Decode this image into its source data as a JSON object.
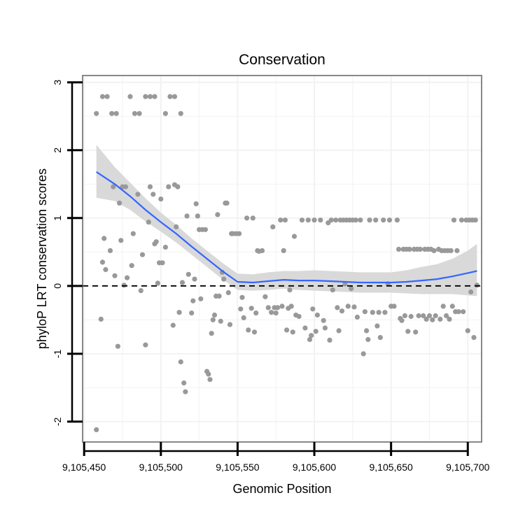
{
  "chart_data": {
    "type": "scatter",
    "title": "Conservation",
    "xlabel": "Genomic Position",
    "ylabel": "phyloP LRT conservation scores",
    "xlim": [
      9105449,
      9105709
    ],
    "ylim": [
      -2.3,
      3.1
    ],
    "x_ticks": [
      {
        "value": 9105450,
        "label": "9,105,450"
      },
      {
        "value": 9105500,
        "label": "9,105,500"
      },
      {
        "value": 9105550,
        "label": "9,105,550"
      },
      {
        "value": 9105600,
        "label": "9,105,600"
      },
      {
        "value": 9105650,
        "label": "9,105,650"
      },
      {
        "value": 9105700,
        "label": "9,105,700"
      }
    ],
    "y_ticks": [
      {
        "value": -2,
        "label": "-2"
      },
      {
        "value": -1,
        "label": "-1"
      },
      {
        "value": 0,
        "label": "0"
      },
      {
        "value": 1,
        "label": "1"
      },
      {
        "value": 2,
        "label": "2"
      },
      {
        "value": 3,
        "label": "3"
      }
    ],
    "reference_line": {
      "y": 0,
      "style": "dashed",
      "color": "#000000"
    },
    "grid": true,
    "colors": {
      "points": "#999999",
      "smooth": "#3366ff",
      "ribbon": "#d9d9d9",
      "grid": "#f2f2f2",
      "border": "#888888"
    },
    "series": [
      {
        "name": "scores",
        "points": [
          [
            9105458,
            2.54
          ],
          [
            9105462,
            2.79
          ],
          [
            9105465,
            2.79
          ],
          [
            9105468,
            2.54
          ],
          [
            9105471,
            2.54
          ],
          [
            9105480,
            2.79
          ],
          [
            9105483,
            2.54
          ],
          [
            9105486,
            2.54
          ],
          [
            9105490,
            2.79
          ],
          [
            9105493,
            2.79
          ],
          [
            9105496,
            2.79
          ],
          [
            9105503,
            2.54
          ],
          [
            9105506,
            2.79
          ],
          [
            9105509,
            2.79
          ],
          [
            9105513,
            2.54
          ],
          [
            9105458,
            -2.12
          ],
          [
            9105461,
            -0.49
          ],
          [
            9105462,
            0.35
          ],
          [
            9105463,
            0.7
          ],
          [
            9105464,
            0.24
          ],
          [
            9105467,
            0.52
          ],
          [
            9105469,
            1.46
          ],
          [
            9105470,
            0.15
          ],
          [
            9105472,
            -0.89
          ],
          [
            9105473,
            1.22
          ],
          [
            9105474,
            0.67
          ],
          [
            9105475,
            1.46
          ],
          [
            9105476,
            0.01
          ],
          [
            9105477,
            1.46
          ],
          [
            9105478,
            0.12
          ],
          [
            9105481,
            0.3
          ],
          [
            9105482,
            0.77
          ],
          [
            9105485,
            1.35
          ],
          [
            9105487,
            -0.07
          ],
          [
            9105488,
            0.46
          ],
          [
            9105490,
            -0.87
          ],
          [
            9105492,
            0.94
          ],
          [
            9105493,
            1.46
          ],
          [
            9105495,
            1.35
          ],
          [
            9105496,
            0.62
          ],
          [
            9105497,
            0.65
          ],
          [
            9105498,
            0.04
          ],
          [
            9105499,
            0.34
          ],
          [
            9105500,
            1.28
          ],
          [
            9105501,
            0.34
          ],
          [
            9105503,
            0.57
          ],
          [
            9105505,
            1.46
          ],
          [
            9105508,
            -0.58
          ],
          [
            9105509,
            1.49
          ],
          [
            9105510,
            0.87
          ],
          [
            9105511,
            1.46
          ],
          [
            9105512,
            -0.39
          ],
          [
            9105513,
            -1.12
          ],
          [
            9105514,
            0.05
          ],
          [
            9105515,
            -1.43
          ],
          [
            9105516,
            -1.56
          ],
          [
            9105517,
            1.03
          ],
          [
            9105518,
            0.17
          ],
          [
            9105520,
            -0.4
          ],
          [
            9105521,
            -0.22
          ],
          [
            9105522,
            0.1
          ],
          [
            9105523,
            1.21
          ],
          [
            9105524,
            1.03
          ],
          [
            9105525,
            0.83
          ],
          [
            9105526,
            -0.19
          ],
          [
            9105527,
            0.83
          ],
          [
            9105529,
            0.83
          ],
          [
            9105530,
            -1.26
          ],
          [
            9105531,
            -1.3
          ],
          [
            9105532,
            -1.38
          ],
          [
            9105533,
            -0.7
          ],
          [
            9105534,
            -0.5
          ],
          [
            9105535,
            -0.43
          ],
          [
            9105536,
            -0.15
          ],
          [
            9105537,
            1.05
          ],
          [
            9105538,
            -0.15
          ],
          [
            9105539,
            -0.52
          ],
          [
            9105540,
            0.2
          ],
          [
            9105541,
            0.1
          ],
          [
            9105542,
            1.22
          ],
          [
            9105543,
            1.22
          ],
          [
            9105544,
            -0.1
          ],
          [
            9105545,
            -0.57
          ],
          [
            9105546,
            0.77
          ],
          [
            9105547,
            0.77
          ],
          [
            9105549,
            0.77
          ],
          [
            9105551,
            0.77
          ],
          [
            9105552,
            -0.34
          ],
          [
            9105553,
            -0.17
          ],
          [
            9105554,
            -0.47
          ],
          [
            9105556,
            1.0
          ],
          [
            9105557,
            -0.65
          ],
          [
            9105559,
            -0.33
          ],
          [
            9105560,
            1.0
          ],
          [
            9105561,
            -0.68
          ],
          [
            9105562,
            -0.4
          ],
          [
            9105563,
            0.52
          ],
          [
            9105564,
            0.51
          ],
          [
            9105566,
            0.52
          ],
          [
            9105568,
            -0.16
          ],
          [
            9105570,
            -0.32
          ],
          [
            9105572,
            -0.39
          ],
          [
            9105573,
            0.87
          ],
          [
            9105574,
            -0.32
          ],
          [
            9105575,
            -0.4
          ],
          [
            9105576,
            -0.32
          ],
          [
            9105578,
            0.97
          ],
          [
            9105579,
            -0.3
          ],
          [
            9105580,
            0.52
          ],
          [
            9105581,
            0.97
          ],
          [
            9105582,
            -0.65
          ],
          [
            9105583,
            -0.33
          ],
          [
            9105584,
            -0.06
          ],
          [
            9105585,
            -0.3
          ],
          [
            9105586,
            -0.68
          ],
          [
            9105587,
            0.73
          ],
          [
            9105588,
            -0.43
          ],
          [
            9105590,
            -0.45
          ],
          [
            9105592,
            0.97
          ],
          [
            9105594,
            -0.62
          ],
          [
            9105596,
            0.97
          ],
          [
            9105597,
            -0.79
          ],
          [
            9105598,
            -0.73
          ],
          [
            9105599,
            -0.34
          ],
          [
            9105600,
            0.97
          ],
          [
            9105601,
            -0.67
          ],
          [
            9105602,
            -0.43
          ],
          [
            9105604,
            0.97
          ],
          [
            9105606,
            -0.51
          ],
          [
            9105607,
            -0.62
          ],
          [
            9105609,
            0.93
          ],
          [
            9105610,
            -0.8
          ],
          [
            9105611,
            0.97
          ],
          [
            9105612,
            -0.06
          ],
          [
            9105614,
            0.97
          ],
          [
            9105615,
            -0.32
          ],
          [
            9105616,
            -0.66
          ],
          [
            9105617,
            0.97
          ],
          [
            9105618,
            -0.37
          ],
          [
            9105619,
            0.97
          ],
          [
            9105620,
            0.03
          ],
          [
            9105621,
            0.97
          ],
          [
            9105622,
            -0.3
          ],
          [
            9105623,
            0.97
          ],
          [
            9105624,
            -0.04
          ],
          [
            9105625,
            0.97
          ],
          [
            9105626,
            -0.31
          ],
          [
            9105627,
            0.97
          ],
          [
            9105628,
            -0.46
          ],
          [
            9105630,
            0.97
          ],
          [
            9105632,
            -1.0
          ],
          [
            9105633,
            -0.38
          ],
          [
            9105634,
            -0.66
          ],
          [
            9105635,
            -0.79
          ],
          [
            9105636,
            0.97
          ],
          [
            9105638,
            -0.39
          ],
          [
            9105640,
            0.97
          ],
          [
            9105641,
            -0.59
          ],
          [
            9105642,
            -0.39
          ],
          [
            9105643,
            -0.76
          ],
          [
            9105645,
            0.97
          ],
          [
            9105646,
            -0.39
          ],
          [
            9105648,
            0.03
          ],
          [
            9105649,
            0.97
          ],
          [
            9105650,
            -0.3
          ],
          [
            9105652,
            -0.3
          ],
          [
            9105654,
            0.97
          ],
          [
            9105655,
            0.54
          ],
          [
            9105656,
            -0.48
          ],
          [
            9105657,
            -0.51
          ],
          [
            9105658,
            0.54
          ],
          [
            9105659,
            -0.44
          ],
          [
            9105660,
            0.54
          ],
          [
            9105661,
            -0.67
          ],
          [
            9105662,
            0.54
          ],
          [
            9105663,
            -0.45
          ],
          [
            9105665,
            0.54
          ],
          [
            9105666,
            -0.68
          ],
          [
            9105667,
            0.54
          ],
          [
            9105668,
            -0.44
          ],
          [
            9105669,
            0.54
          ],
          [
            9105671,
            -0.44
          ],
          [
            9105672,
            0.54
          ],
          [
            9105673,
            -0.49
          ],
          [
            9105674,
            0.54
          ],
          [
            9105675,
            -0.44
          ],
          [
            9105676,
            0.54
          ],
          [
            9105677,
            -0.5
          ],
          [
            9105678,
            0.52
          ],
          [
            9105679,
            -0.44
          ],
          [
            9105681,
            0.54
          ],
          [
            9105682,
            -0.49
          ],
          [
            9105683,
            0.52
          ],
          [
            9105684,
            -0.3
          ],
          [
            9105685,
            0.52
          ],
          [
            9105686,
            -0.44
          ],
          [
            9105687,
            0.52
          ],
          [
            9105688,
            -0.49
          ],
          [
            9105689,
            0.52
          ],
          [
            9105690,
            -0.3
          ],
          [
            9105691,
            0.97
          ],
          [
            9105692,
            -0.38
          ],
          [
            9105693,
            0.52
          ],
          [
            9105694,
            -0.38
          ],
          [
            9105696,
            0.97
          ],
          [
            9105697,
            -0.38
          ],
          [
            9105699,
            0.97
          ],
          [
            9105700,
            -0.66
          ],
          [
            9105701,
            0.97
          ],
          [
            9105702,
            -0.09
          ],
          [
            9105703,
            0.97
          ],
          [
            9105704,
            -0.76
          ],
          [
            9105705,
            0.97
          ],
          [
            9105706,
            0.01
          ]
        ]
      }
    ],
    "smooth": {
      "method": "loess",
      "x": [
        9105458,
        9105470,
        9105480,
        9105490,
        9105500,
        9105510,
        9105520,
        9105530,
        9105540,
        9105550,
        9105560,
        9105570,
        9105580,
        9105590,
        9105600,
        9105610,
        9105620,
        9105630,
        9105640,
        9105650,
        9105660,
        9105670,
        9105680,
        9105690,
        9105700,
        9105706
      ],
      "y": [
        1.68,
        1.5,
        1.32,
        1.12,
        0.94,
        0.77,
        0.58,
        0.4,
        0.22,
        0.06,
        0.05,
        0.07,
        0.09,
        0.08,
        0.08,
        0.07,
        0.06,
        0.05,
        0.05,
        0.05,
        0.06,
        0.08,
        0.1,
        0.14,
        0.19,
        0.22
      ],
      "lower": [
        1.3,
        1.25,
        1.12,
        0.95,
        0.8,
        0.64,
        0.46,
        0.28,
        0.1,
        -0.06,
        -0.07,
        -0.06,
        -0.04,
        -0.06,
        -0.07,
        -0.08,
        -0.09,
        -0.1,
        -0.1,
        -0.1,
        -0.11,
        -0.12,
        -0.12,
        -0.12,
        -0.14,
        -0.15
      ],
      "upper": [
        2.08,
        1.75,
        1.52,
        1.29,
        1.08,
        0.9,
        0.7,
        0.52,
        0.34,
        0.18,
        0.17,
        0.2,
        0.22,
        0.22,
        0.23,
        0.22,
        0.21,
        0.2,
        0.2,
        0.2,
        0.23,
        0.28,
        0.32,
        0.4,
        0.52,
        0.62
      ]
    }
  }
}
